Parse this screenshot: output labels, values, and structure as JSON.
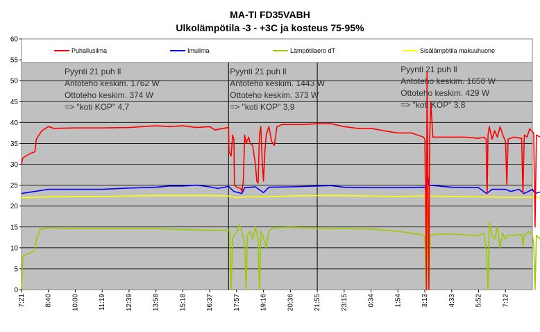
{
  "chart_data": {
    "type": "line",
    "title": "MA-TI FD35VABH",
    "subtitle": "Ulkolämpötila -3 - +3C ja kosteus 75-95%",
    "xlabel": "",
    "ylabel": "",
    "ylim": [
      0,
      60
    ],
    "yticks": [
      0,
      5,
      10,
      15,
      20,
      25,
      30,
      35,
      40,
      45,
      50,
      55,
      60
    ],
    "x_tick_labels": [
      "7:21",
      "8:40",
      "10:00",
      "11:19",
      "12:39",
      "13:58",
      "15:18",
      "16:37",
      "17:57",
      "19:16",
      "20:36",
      "21:55",
      "23:15",
      "0:34",
      "1:54",
      "3:13",
      "4:33",
      "5:52",
      "7:12"
    ],
    "grid": true,
    "legend_position": "top",
    "plot_background": "#c0c0c0",
    "dividers_after_tick": [
      7.7,
      11.0
    ],
    "series": [
      {
        "name": "Puhallusilma",
        "color": "#ff0000",
        "points": [
          [
            0,
            30
          ],
          [
            0.05,
            31.5
          ],
          [
            0.3,
            32.5
          ],
          [
            0.5,
            33
          ],
          [
            0.55,
            36
          ],
          [
            0.75,
            38
          ],
          [
            1,
            39
          ],
          [
            1.2,
            38.6
          ],
          [
            2,
            38.7
          ],
          [
            3,
            38.7
          ],
          [
            4,
            38.8
          ],
          [
            4.5,
            39
          ],
          [
            5,
            39.2
          ],
          [
            5.5,
            39
          ],
          [
            6,
            39.2
          ],
          [
            6.5,
            38.8
          ],
          [
            7,
            39
          ],
          [
            7.2,
            38.2
          ],
          [
            7.5,
            38.6
          ],
          [
            7.7,
            38.8
          ],
          [
            7.72,
            33
          ],
          [
            7.8,
            32
          ],
          [
            7.85,
            37
          ],
          [
            7.9,
            36
          ],
          [
            7.92,
            25
          ],
          [
            8,
            24.5
          ],
          [
            8.15,
            24.2
          ],
          [
            8.2,
            23.5
          ],
          [
            8.25,
            26
          ],
          [
            8.3,
            37
          ],
          [
            8.35,
            35
          ],
          [
            8.45,
            36.5
          ],
          [
            8.5,
            35
          ],
          [
            8.6,
            34.5
          ],
          [
            8.65,
            32
          ],
          [
            8.7,
            30
          ],
          [
            8.75,
            26
          ],
          [
            8.8,
            25.5
          ],
          [
            8.85,
            37
          ],
          [
            8.9,
            39
          ],
          [
            8.95,
            31
          ],
          [
            9,
            26
          ],
          [
            9.05,
            33
          ],
          [
            9.1,
            37
          ],
          [
            9.2,
            39
          ],
          [
            9.3,
            35.5
          ],
          [
            9.4,
            34.5
          ],
          [
            9.5,
            39
          ],
          [
            9.7,
            39.5
          ],
          [
            10,
            39.5
          ],
          [
            10.5,
            39.5
          ],
          [
            11,
            39.7
          ],
          [
            11.5,
            39.7
          ],
          [
            12,
            39
          ],
          [
            12.5,
            38.6
          ],
          [
            13,
            38.6
          ],
          [
            13.5,
            38
          ],
          [
            14,
            37.5
          ],
          [
            14.5,
            37.5
          ],
          [
            14.95,
            36.5
          ],
          [
            15.0,
            36
          ],
          [
            15.03,
            20
          ],
          [
            15.06,
            0
          ],
          [
            15.08,
            52
          ],
          [
            15.1,
            36
          ],
          [
            15.15,
            0
          ],
          [
            15.18,
            36
          ],
          [
            15.22,
            45
          ],
          [
            15.3,
            36.5
          ],
          [
            16,
            36.5
          ],
          [
            16.5,
            36.5
          ],
          [
            17,
            36.2
          ],
          [
            17.2,
            36.5
          ],
          [
            17.28,
            36
          ],
          [
            17.3,
            27
          ],
          [
            17.32,
            23
          ],
          [
            17.35,
            37
          ],
          [
            17.4,
            39
          ],
          [
            17.5,
            36
          ],
          [
            17.6,
            38
          ],
          [
            17.7,
            36.5
          ],
          [
            17.8,
            39
          ],
          [
            17.9,
            37
          ],
          [
            18.0,
            35.5
          ],
          [
            18.05,
            25
          ],
          [
            18.1,
            36
          ],
          [
            18.3,
            36.5
          ],
          [
            18.6,
            36.2
          ],
          [
            18.65,
            23
          ],
          [
            18.7,
            37
          ],
          [
            18.8,
            36.5
          ],
          [
            18.9,
            38.5
          ],
          [
            19.05,
            37.5
          ],
          [
            19.1,
            15
          ],
          [
            19.15,
            37
          ],
          [
            19.3,
            36.5
          ],
          [
            19.5,
            36
          ],
          [
            19.6,
            37
          ],
          [
            19.7,
            35.5
          ],
          [
            19.8,
            35
          ],
          [
            19.9,
            31
          ],
          [
            19.95,
            14.5
          ]
        ]
      },
      {
        "name": "Imuilma",
        "color": "#0000ff",
        "points": [
          [
            0,
            23
          ],
          [
            0.5,
            23.5
          ],
          [
            1,
            24
          ],
          [
            2,
            24
          ],
          [
            3,
            24
          ],
          [
            4,
            24.3
          ],
          [
            5,
            24.5
          ],
          [
            5.5,
            24.8
          ],
          [
            6,
            24.8
          ],
          [
            6.5,
            25
          ],
          [
            7,
            24.6
          ],
          [
            7.3,
            24.2
          ],
          [
            7.7,
            24.7
          ],
          [
            7.9,
            23.5
          ],
          [
            8.2,
            23
          ],
          [
            8.3,
            24.4
          ],
          [
            8.7,
            24.6
          ],
          [
            9,
            23.2
          ],
          [
            9.2,
            24.5
          ],
          [
            10,
            24.6
          ],
          [
            11,
            24.8
          ],
          [
            11.5,
            24.9
          ],
          [
            12,
            24.5
          ],
          [
            13,
            24.4
          ],
          [
            14,
            24.4
          ],
          [
            15,
            24.5
          ],
          [
            15.05,
            24
          ],
          [
            15.1,
            28
          ],
          [
            15.15,
            25
          ],
          [
            16,
            24.5
          ],
          [
            17,
            24.4
          ],
          [
            17.3,
            23
          ],
          [
            17.5,
            24
          ],
          [
            18,
            24
          ],
          [
            18.2,
            23.5
          ],
          [
            18.5,
            24
          ],
          [
            18.7,
            23
          ],
          [
            19,
            24
          ],
          [
            19.1,
            23
          ],
          [
            19.5,
            23.8
          ],
          [
            20,
            24
          ]
        ]
      },
      {
        "name": "Lämpötilaero dT",
        "color": "#99cc00",
        "points": [
          [
            0,
            0
          ],
          [
            0.05,
            8
          ],
          [
            0.2,
            8.5
          ],
          [
            0.4,
            9
          ],
          [
            0.5,
            9.5
          ],
          [
            0.55,
            12
          ],
          [
            0.7,
            14.5
          ],
          [
            1,
            14.8
          ],
          [
            2,
            14.6
          ],
          [
            3,
            14.6
          ],
          [
            4,
            14.6
          ],
          [
            5,
            14.6
          ],
          [
            6,
            14.4
          ],
          [
            7,
            14.2
          ],
          [
            7.7,
            14.2
          ],
          [
            7.75,
            14
          ],
          [
            7.8,
            0
          ],
          [
            7.85,
            12
          ],
          [
            7.9,
            13
          ],
          [
            8.0,
            13.5
          ],
          [
            8.1,
            15.5
          ],
          [
            8.2,
            14
          ],
          [
            8.3,
            11
          ],
          [
            8.35,
            0
          ],
          [
            8.4,
            13
          ],
          [
            8.5,
            14
          ],
          [
            8.6,
            12
          ],
          [
            8.7,
            15
          ],
          [
            8.8,
            12
          ],
          [
            8.85,
            0
          ],
          [
            8.9,
            14
          ],
          [
            9.0,
            12.5
          ],
          [
            9.1,
            10
          ],
          [
            9.2,
            14
          ],
          [
            9.3,
            14.6
          ],
          [
            9.5,
            14.8
          ],
          [
            10,
            14.9
          ],
          [
            11,
            14.7
          ],
          [
            12,
            14.6
          ],
          [
            13,
            14.5
          ],
          [
            14,
            14
          ],
          [
            14.5,
            13.5
          ],
          [
            14.9,
            13.2
          ],
          [
            15.0,
            12.5
          ],
          [
            15.05,
            0
          ],
          [
            15.1,
            25
          ],
          [
            15.15,
            0
          ],
          [
            15.2,
            13
          ],
          [
            15.4,
            13.3
          ],
          [
            16,
            13.3
          ],
          [
            17,
            12.9
          ],
          [
            17.2,
            13.5
          ],
          [
            17.3,
            9
          ],
          [
            17.35,
            0
          ],
          [
            17.4,
            16
          ],
          [
            17.5,
            13
          ],
          [
            17.6,
            12
          ],
          [
            17.7,
            15
          ],
          [
            17.8,
            10
          ],
          [
            17.9,
            13.5
          ],
          [
            18,
            12
          ],
          [
            18.1,
            13
          ],
          [
            18.3,
            13
          ],
          [
            18.6,
            13.2
          ],
          [
            18.65,
            10.5
          ],
          [
            18.7,
            13
          ],
          [
            18.9,
            14
          ],
          [
            19.0,
            13
          ],
          [
            19.05,
            11
          ],
          [
            19.1,
            0
          ],
          [
            19.15,
            13
          ],
          [
            19.3,
            12
          ],
          [
            19.5,
            12.5
          ],
          [
            19.7,
            12.5
          ],
          [
            19.95,
            12.2
          ]
        ]
      },
      {
        "name": "Sisälämpötila makuuhuone",
        "color": "#ffff00",
        "points": [
          [
            0,
            22
          ],
          [
            1,
            22.2
          ],
          [
            2,
            22.3
          ],
          [
            3,
            22.3
          ],
          [
            4,
            22.4
          ],
          [
            5,
            22.5
          ],
          [
            6,
            22.5
          ],
          [
            7,
            22.5
          ],
          [
            7.7,
            22.4
          ],
          [
            8,
            22
          ],
          [
            8.3,
            22.2
          ],
          [
            9,
            22.2
          ],
          [
            10,
            22.4
          ],
          [
            11,
            22.5
          ],
          [
            12,
            22.5
          ],
          [
            13,
            22.4
          ],
          [
            14,
            22.3
          ],
          [
            15,
            22.4
          ],
          [
            16,
            22.3
          ],
          [
            17,
            22.2
          ],
          [
            18,
            22.1
          ],
          [
            19,
            22.1
          ],
          [
            20,
            22
          ]
        ]
      }
    ],
    "annotations": [
      {
        "lines": [
          "Pyynti 21 puh ll",
          "Antoteho keskim. 1762 W",
          "Ottoteho keskim. 374 W",
          "=> \"koti KOP\" 4,7"
        ],
        "x_tick": 1.6,
        "y": 51.5
      },
      {
        "lines": [
          "Pyynti 21 puh ll",
          "Antoteho keskim. 1443 W",
          "Ottoteho keskim. 373 W",
          "=> \"koti KOP\" 3,9"
        ],
        "x_tick": 7.75,
        "y": 51.5
      },
      {
        "lines": [
          "Pyynti 21 puh ll",
          "Antoteho keskim. 1650 W",
          "Ottoteho keskim. 429 W",
          "=> \"koti KOP\" 3,8"
        ],
        "x_tick": 14.1,
        "y": 52
      }
    ]
  }
}
